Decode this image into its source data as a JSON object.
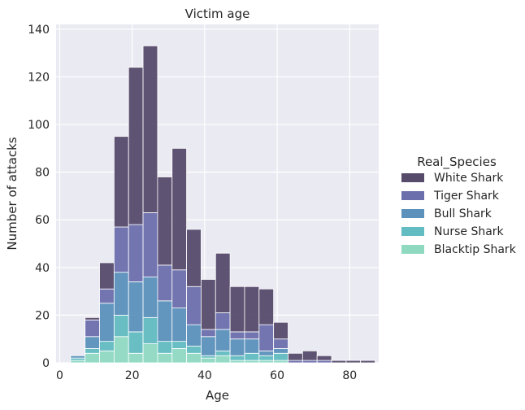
{
  "chart_data": {
    "type": "bar",
    "stacked": true,
    "title": "Victim age",
    "xlabel": "Age",
    "ylabel": "Number of attacks",
    "xlim": [
      -1,
      88
    ],
    "ylim": [
      0,
      142
    ],
    "xticks": [
      0,
      20,
      40,
      60,
      80
    ],
    "yticks": [
      0,
      20,
      40,
      60,
      80,
      100,
      120,
      140
    ],
    "bin_edges": [
      3,
      7,
      11,
      15,
      19,
      23,
      27,
      31,
      35,
      39,
      43,
      47,
      51,
      55,
      59,
      63,
      67,
      71,
      75,
      79,
      83
    ],
    "grid": true,
    "legend": {
      "title": "Real_Species",
      "position": "right"
    },
    "series": [
      {
        "name": "White Shark",
        "color": "#574b6c",
        "values": [
          0,
          1,
          11,
          38,
          66,
          70,
          37,
          51,
          24,
          21,
          25,
          19,
          19,
          15,
          7,
          3,
          4,
          2,
          1,
          1,
          1
        ]
      },
      {
        "name": "Tiger Shark",
        "color": "#6b6fac",
        "values": [
          0,
          7,
          6,
          19,
          24,
          27,
          15,
          16,
          16,
          3,
          7,
          3,
          3,
          11,
          4,
          1,
          1,
          1,
          0,
          0,
          0
        ]
      },
      {
        "name": "Bull Shark",
        "color": "#5b91ba",
        "values": [
          1,
          5,
          16,
          18,
          21,
          17,
          17,
          14,
          9,
          8,
          9,
          7,
          6,
          2,
          2,
          0,
          0,
          0,
          0,
          0,
          0
        ]
      },
      {
        "name": "Nurse Shark",
        "color": "#62bcc1",
        "values": [
          1,
          2,
          4,
          9,
          9,
          11,
          5,
          3,
          3,
          1,
          2,
          2,
          3,
          2,
          3,
          0,
          0,
          0,
          0,
          0,
          0
        ]
      },
      {
        "name": "Blacktip Shark",
        "color": "#8fd9c1",
        "values": [
          1,
          4,
          5,
          11,
          4,
          8,
          4,
          6,
          4,
          2,
          3,
          1,
          1,
          1,
          1,
          0,
          0,
          0,
          0,
          0,
          0
        ]
      }
    ]
  }
}
